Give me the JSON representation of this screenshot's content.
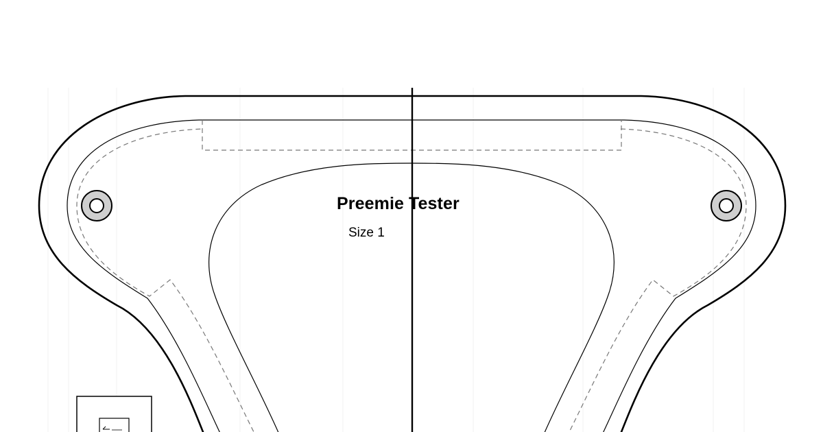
{
  "pattern": {
    "title": "Preemie Tester",
    "size_label": "Size 1"
  }
}
